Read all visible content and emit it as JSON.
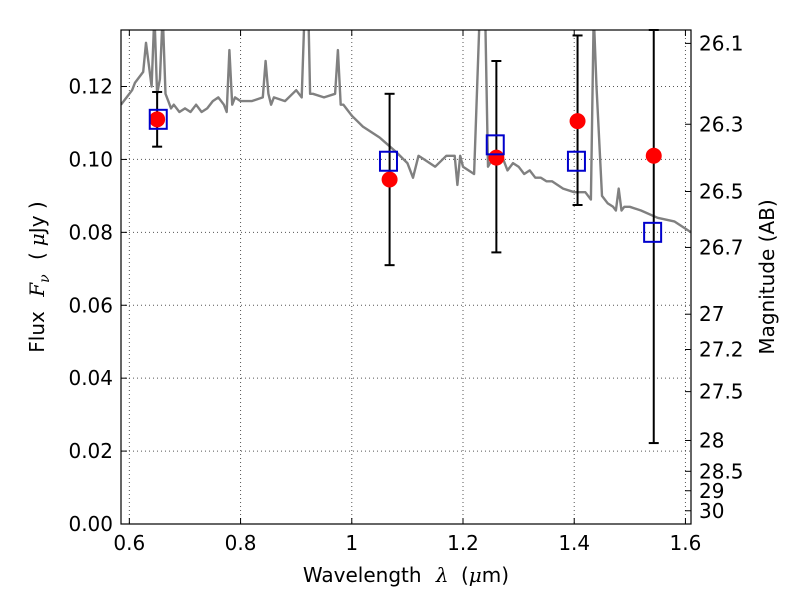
{
  "chart_data": {
    "type": "scatter",
    "title": "",
    "xlabel": {
      "prefix": "Wavelength",
      "symbol": "λ",
      "unit_open": "(",
      "unit_mu": "μ",
      "unit_rest": "m)"
    },
    "ylabel": {
      "prefix": "Flux",
      "symbol_main": "F",
      "symbol_sub": "ν",
      "unit_open": "(",
      "unit_mu": "μ",
      "unit_rest": "Jy )"
    },
    "ylabel_right": "Magnitude (AB)",
    "xlim": [
      0.585,
      1.61
    ],
    "ylim": [
      0.0,
      0.1355
    ],
    "grid": true,
    "grid_style": "dotted",
    "x_ticks": [
      0.6,
      0.8,
      1.0,
      1.2,
      1.4,
      1.6
    ],
    "x_tick_labels": [
      "0.6",
      "0.8",
      "1",
      "1.2",
      "1.4",
      "1.6"
    ],
    "y_ticks": [
      0.0,
      0.02,
      0.04,
      0.06,
      0.08,
      0.1,
      0.12
    ],
    "y_tick_labels": [
      "0.00",
      "0.02",
      "0.04",
      "0.06",
      "0.08",
      "0.10",
      "0.12"
    ],
    "right_axis": {
      "scale": "AB magnitude, m = 23.9 - 2.5 log10(F / μJy)",
      "tick_labels": [
        "26.1",
        "26.3",
        "26.5",
        "26.7",
        "27",
        "27.2",
        "27.5",
        "28",
        "28.5",
        "29",
        "30"
      ],
      "tick_values": [
        26.1,
        26.3,
        26.5,
        26.7,
        27,
        27.2,
        27.5,
        28,
        28.5,
        29,
        30
      ]
    },
    "series": [
      {
        "kind": "errorbar",
        "color": "#000000",
        "x": [
          0.65,
          1.068,
          1.26,
          1.406,
          1.543
        ],
        "y": [
          0.111,
          0.0945,
          0.1005,
          0.1105,
          0.101
        ],
        "yerr_low": [
          0.1035,
          0.071,
          0.0745,
          0.0875,
          0.0222
        ],
        "yerr_high": [
          0.1185,
          0.118,
          0.127,
          0.134,
          0.137
        ]
      },
      {
        "kind": "points",
        "marker": "circle",
        "color": "#ff0000",
        "x": [
          0.65,
          1.068,
          1.26,
          1.406,
          1.543
        ],
        "y": [
          0.111,
          0.0945,
          0.1005,
          0.1105,
          0.101
        ]
      },
      {
        "kind": "points",
        "marker": "square-open",
        "color": "#0000cc",
        "x": [
          0.652,
          1.066,
          1.258,
          1.404,
          1.541
        ],
        "y": [
          0.111,
          0.0995,
          0.104,
          0.0995,
          0.08
        ]
      },
      {
        "kind": "model-spectrum",
        "color": "#808080",
        "x": [
          0.585,
          0.595,
          0.605,
          0.61,
          0.625,
          0.63,
          0.64,
          0.645,
          0.65,
          0.655,
          0.66,
          0.665,
          0.67,
          0.675,
          0.68,
          0.69,
          0.7,
          0.71,
          0.72,
          0.73,
          0.74,
          0.75,
          0.76,
          0.77,
          0.775,
          0.78,
          0.785,
          0.79,
          0.8,
          0.82,
          0.84,
          0.845,
          0.85,
          0.855,
          0.86,
          0.88,
          0.9,
          0.91,
          0.915,
          0.918,
          0.922,
          0.925,
          0.93,
          0.95,
          0.97,
          0.975,
          0.98,
          0.985,
          0.99,
          1.0,
          1.02,
          1.05,
          1.08,
          1.1,
          1.11,
          1.12,
          1.13,
          1.15,
          1.17,
          1.185,
          1.19,
          1.195,
          1.2,
          1.22,
          1.23,
          1.235,
          1.24,
          1.245,
          1.26,
          1.27,
          1.28,
          1.29,
          1.3,
          1.31,
          1.32,
          1.33,
          1.34,
          1.35,
          1.36,
          1.38,
          1.4,
          1.42,
          1.43,
          1.435,
          1.44,
          1.45,
          1.46,
          1.47,
          1.475,
          1.48,
          1.485,
          1.49,
          1.5,
          1.52,
          1.55,
          1.58,
          1.61
        ],
        "y": [
          0.115,
          0.117,
          0.119,
          0.121,
          0.124,
          0.132,
          0.12,
          0.14,
          0.118,
          0.122,
          0.14,
          0.118,
          0.116,
          0.114,
          0.115,
          0.113,
          0.114,
          0.113,
          0.115,
          0.113,
          0.114,
          0.116,
          0.117,
          0.115,
          0.113,
          0.13,
          0.115,
          0.117,
          0.116,
          0.116,
          0.117,
          0.127,
          0.118,
          0.115,
          0.117,
          0.116,
          0.119,
          0.117,
          0.14,
          0.14,
          0.14,
          0.118,
          0.118,
          0.117,
          0.118,
          0.13,
          0.115,
          0.115,
          0.114,
          0.112,
          0.109,
          0.106,
          0.102,
          0.099,
          0.095,
          0.101,
          0.1,
          0.098,
          0.101,
          0.101,
          0.093,
          0.101,
          0.098,
          0.096,
          0.14,
          0.14,
          0.14,
          0.098,
          0.102,
          0.101,
          0.097,
          0.099,
          0.098,
          0.096,
          0.097,
          0.095,
          0.095,
          0.094,
          0.094,
          0.092,
          0.091,
          0.091,
          0.089,
          0.14,
          0.12,
          0.09,
          0.088,
          0.087,
          0.086,
          0.092,
          0.086,
          0.087,
          0.087,
          0.086,
          0.084,
          0.083,
          0.08
        ]
      }
    ]
  },
  "colors": {
    "spectrum": "#808080",
    "points": "#ff0000",
    "model_boxes": "#0000cc",
    "errorbars": "#000000",
    "grid": "#555555"
  }
}
